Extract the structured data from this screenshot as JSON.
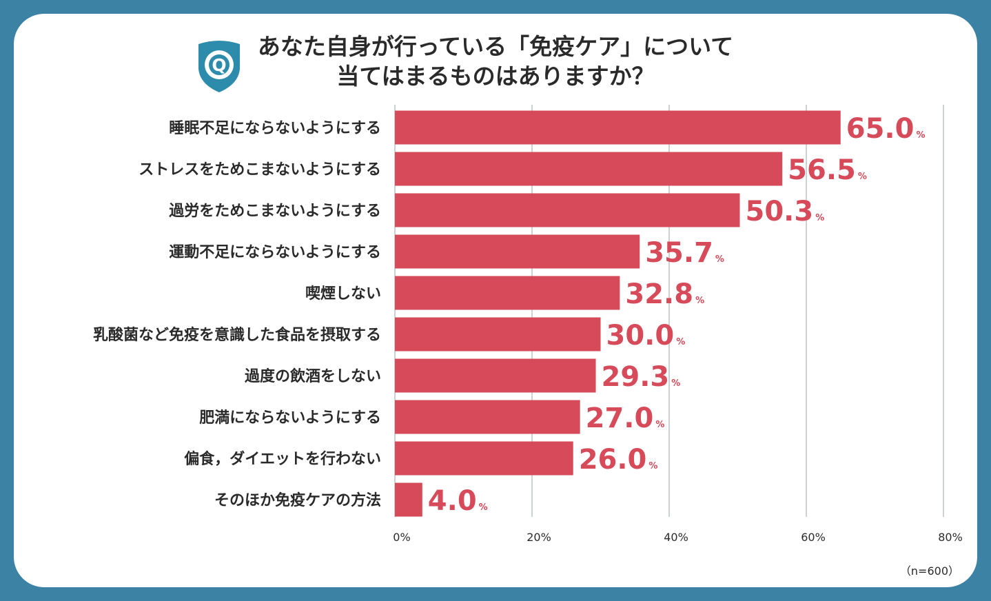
{
  "title": {
    "line1": "あなた自身が行っている「免疫ケア」について",
    "line2": "当てはまるものはありますか？"
  },
  "icon": {
    "name": "q-badge-icon",
    "letter": "Q",
    "color": "#2d8bab"
  },
  "colors": {
    "bar": "#d64a5a",
    "background": "#3b82a5",
    "grid": "#9aa4a8"
  },
  "note": "（n=600）",
  "chart_data": {
    "type": "bar",
    "orientation": "horizontal",
    "title": "あなた自身が行っている「免疫ケア」について当てはまるものはありますか？",
    "xlabel": "",
    "ylabel": "",
    "xlim": [
      0,
      80
    ],
    "ticks": [
      0,
      20,
      40,
      60,
      80
    ],
    "tick_suffix": "%",
    "value_suffix": "%",
    "grid": true,
    "categories": [
      "睡眠不足にならないようにする",
      "ストレスをためこまないようにする",
      "過労をためこまないようにする",
      "運動不足にならないようにする",
      "喫煙しない",
      "乳酸菌など免疫を意識した食品を摂取する",
      "過度の飲酒をしない",
      "肥満にならないようにする",
      "偏食，ダイエットを行わない",
      "そのほか免疫ケアの方法"
    ],
    "values": [
      65.0,
      56.5,
      50.3,
      35.7,
      32.8,
      30.0,
      29.3,
      27.0,
      26.0,
      4.0
    ],
    "n": 600
  }
}
